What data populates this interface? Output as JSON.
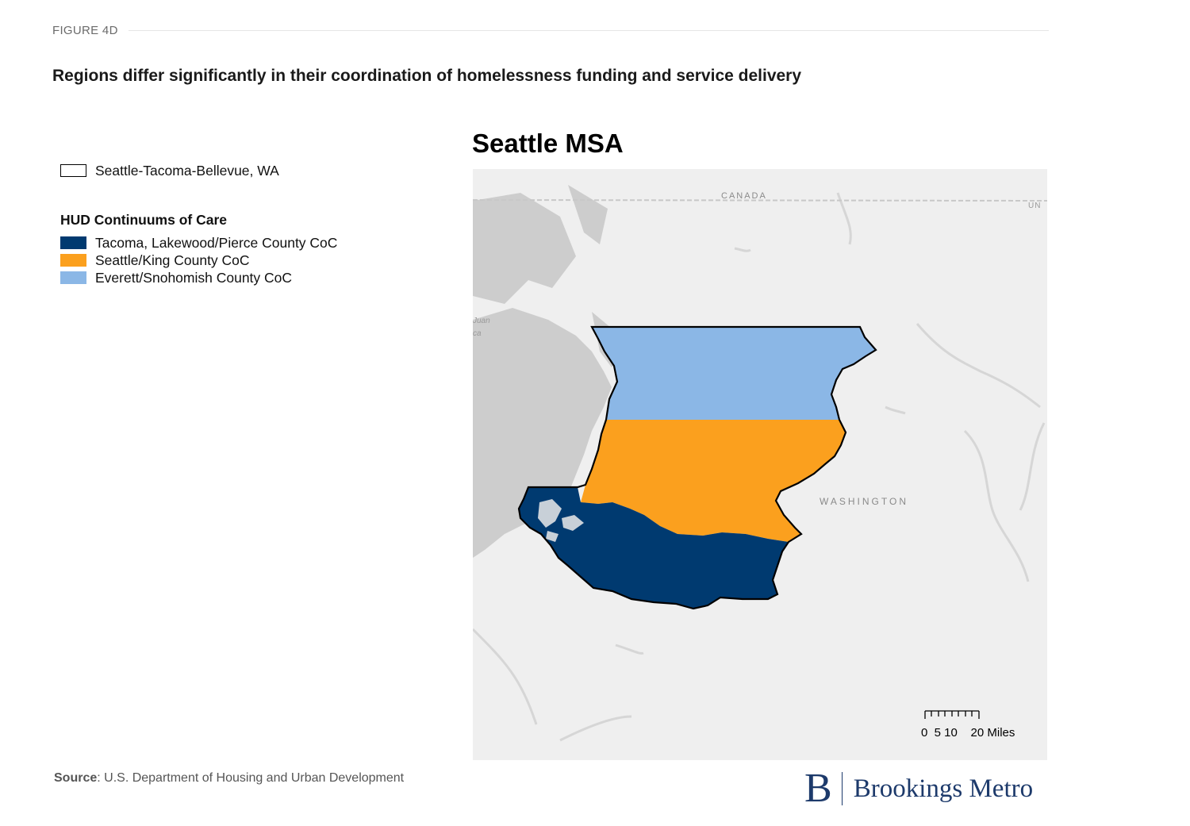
{
  "figure_label": "FIGURE 4D",
  "headline": "Regions differ significantly in their coordination of homelessness funding and service delivery",
  "legend": {
    "msa_label": "Seattle-Tacoma-Bellevue, WA",
    "heading": "HUD Continuums of Care",
    "items": [
      {
        "label": "Tacoma, Lakewood/Pierce County CoC",
        "color": "#003a70"
      },
      {
        "label": "Seattle/King County CoC",
        "color": "#fba01e"
      },
      {
        "label": "Everett/Snohomish County CoC",
        "color": "#8bb7e6"
      }
    ]
  },
  "map": {
    "title": "Seattle MSA",
    "labels": {
      "canada": "CANADA",
      "un": "UN",
      "washington": "WASHINGTON",
      "juan": "Juan",
      "ca": "ca"
    },
    "scale": {
      "ticks": "0  5 10    20 Miles"
    }
  },
  "source": {
    "prefix": "Source",
    "text": ": U.S. Department of Housing and Urban Development"
  },
  "brand": {
    "mark": "B",
    "name": "Brookings Metro"
  }
}
